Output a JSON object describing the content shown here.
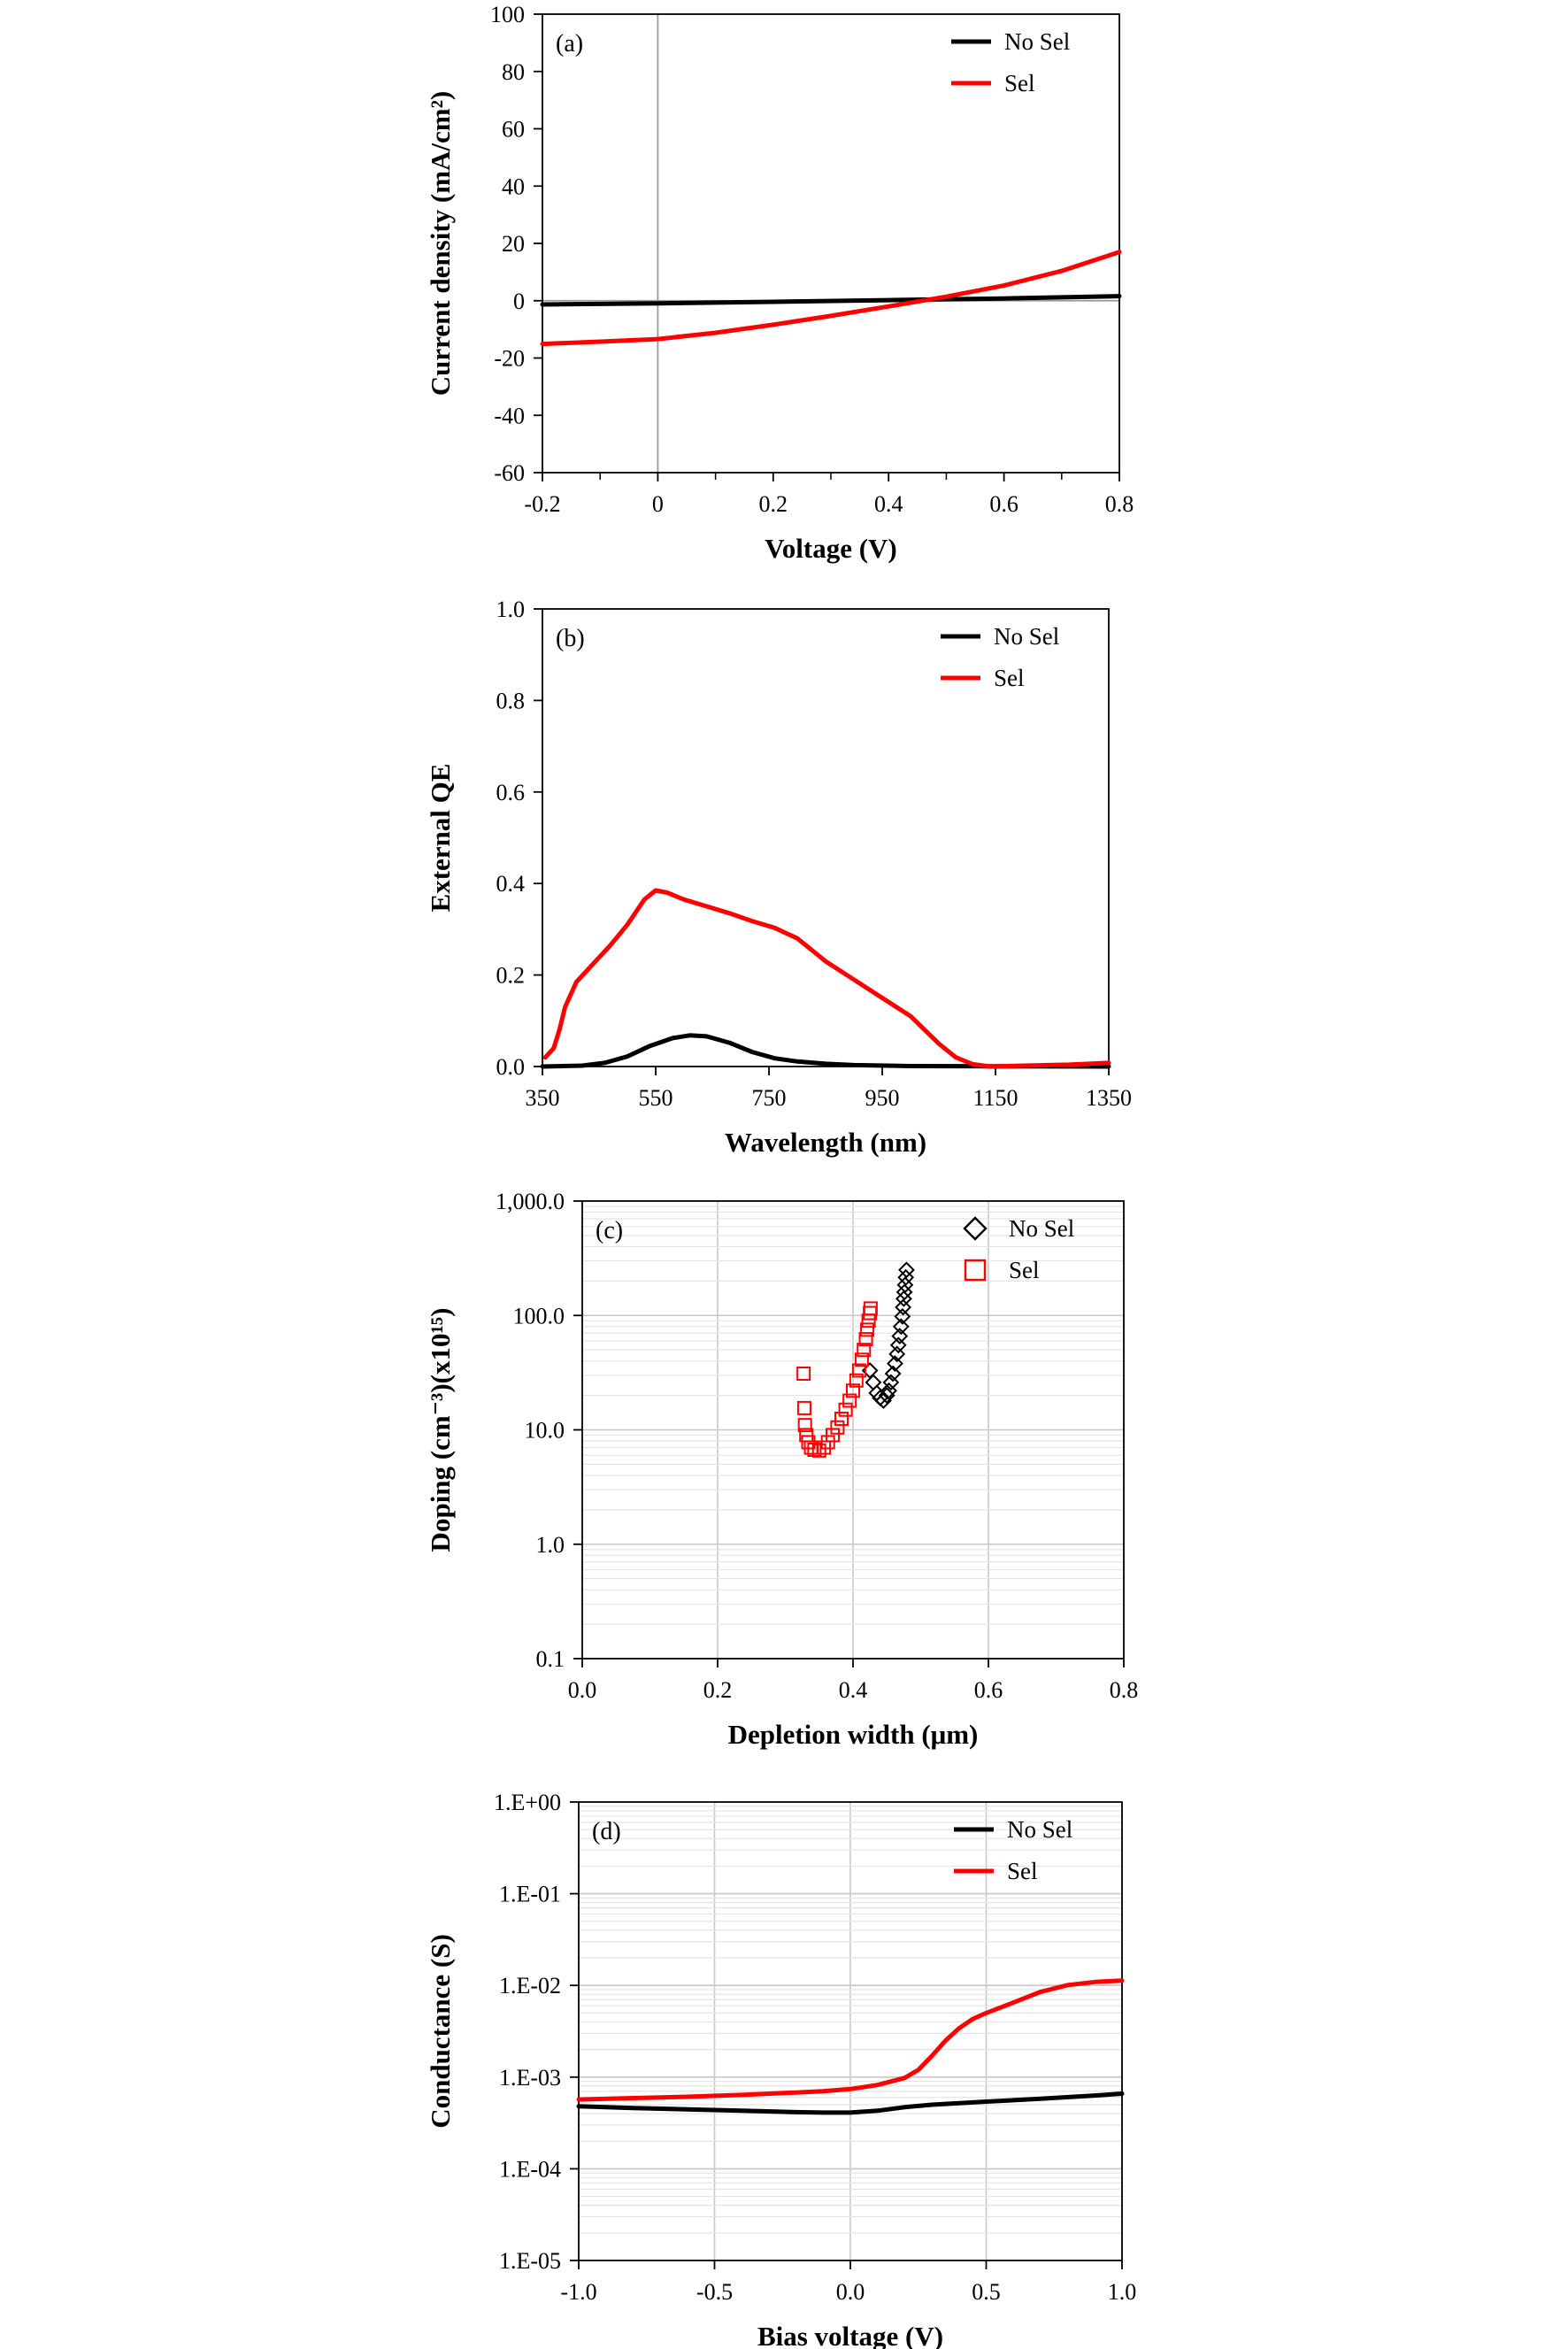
{
  "chart_data": [
    {
      "panel_label": "(a)",
      "type": "line",
      "xlabel": "Voltage (V)",
      "ylabel": "Current density (mA/cm²)",
      "xlim": [
        -0.2,
        0.8
      ],
      "ylim": [
        -60,
        100
      ],
      "xticks": [
        -0.2,
        0,
        0.2,
        0.4,
        0.6,
        0.8
      ],
      "xtick_labels": [
        "-0.2",
        "0",
        "0.2",
        "0.4",
        "0.6",
        "0.8"
      ],
      "yticks": [
        -60,
        -40,
        -20,
        0,
        20,
        40,
        60,
        80,
        100
      ],
      "ytick_labels": [
        "-60",
        "-40",
        "-20",
        "0",
        "20",
        "40",
        "60",
        "80",
        "100"
      ],
      "grid": false,
      "zero_lines": true,
      "legend_position": "top-right",
      "series": [
        {
          "name": "No Sel",
          "color": "#000000",
          "marker": "line",
          "x": [
            -0.2,
            0.0,
            0.2,
            0.4,
            0.6,
            0.8
          ],
          "y": [
            -1.3,
            -0.9,
            -0.4,
            0.2,
            0.8,
            1.6
          ]
        },
        {
          "name": "Sel",
          "color": "#ff0000",
          "marker": "line",
          "x": [
            -0.2,
            -0.1,
            0.0,
            0.1,
            0.2,
            0.3,
            0.4,
            0.45,
            0.5,
            0.6,
            0.7,
            0.8
          ],
          "y": [
            -15.1,
            -14.3,
            -13.4,
            -11.2,
            -8.4,
            -5.3,
            -2.0,
            -0.3,
            1.4,
            5.3,
            10.4,
            17.0
          ]
        }
      ]
    },
    {
      "panel_label": "(b)",
      "type": "line",
      "xlabel": "Wavelength (nm)",
      "ylabel": "External QE",
      "xlim": [
        350,
        1350
      ],
      "ylim": [
        0,
        1
      ],
      "xticks": [
        350,
        550,
        750,
        950,
        1150,
        1350
      ],
      "xtick_labels": [
        "350",
        "550",
        "750",
        "950",
        "1150",
        "1350"
      ],
      "yticks": [
        0,
        0.2,
        0.4,
        0.6,
        0.8,
        1.0
      ],
      "ytick_labels": [
        "0.0",
        "0.2",
        "0.4",
        "0.6",
        "0.8",
        "1.0"
      ],
      "grid": false,
      "legend_position": "top-right",
      "series": [
        {
          "name": "No Sel",
          "color": "#000000",
          "marker": "line",
          "x": [
            350,
            420,
            460,
            500,
            540,
            580,
            610,
            640,
            680,
            720,
            760,
            800,
            850,
            900,
            1000,
            1350
          ],
          "y": [
            0.0,
            0.002,
            0.008,
            0.022,
            0.045,
            0.062,
            0.068,
            0.066,
            0.052,
            0.032,
            0.018,
            0.011,
            0.006,
            0.003,
            0.001,
            0.0
          ]
        },
        {
          "name": "Sel",
          "color": "#ff0000",
          "marker": "line",
          "x": [
            355,
            370,
            380,
            390,
            410,
            440,
            470,
            500,
            530,
            550,
            570,
            600,
            640,
            680,
            720,
            760,
            800,
            850,
            900,
            950,
            1000,
            1050,
            1080,
            1110,
            1140,
            1200,
            1280,
            1350
          ],
          "y": [
            0.02,
            0.04,
            0.08,
            0.13,
            0.185,
            0.225,
            0.265,
            0.31,
            0.365,
            0.385,
            0.38,
            0.365,
            0.35,
            0.335,
            0.318,
            0.303,
            0.28,
            0.23,
            0.19,
            0.15,
            0.11,
            0.05,
            0.02,
            0.005,
            0.0,
            0.002,
            0.004,
            0.008
          ]
        }
      ]
    },
    {
      "panel_label": "(c)",
      "type": "scatter",
      "xlabel": "Depletion width (μm)",
      "ylabel": "Doping (cm⁻³)(x10¹⁵)",
      "xlim": [
        0,
        0.8
      ],
      "ylim": [
        0.1,
        1000
      ],
      "yscale": "log",
      "xticks": [
        0,
        0.2,
        0.4,
        0.6,
        0.8
      ],
      "xtick_labels": [
        "0.0",
        "0.2",
        "0.4",
        "0.6",
        "0.8"
      ],
      "yticks": [
        0.1,
        1,
        10,
        100,
        1000
      ],
      "ytick_labels": [
        "0.1",
        "1.0",
        "10.0",
        "100.0",
        "1,000.0"
      ],
      "grid": true,
      "legend_position": "top-right",
      "series": [
        {
          "name": "No Sel",
          "color": "#000000",
          "marker": "diamond",
          "x": [
            0.425,
            0.43,
            0.435,
            0.44,
            0.445,
            0.45,
            0.453,
            0.456,
            0.459,
            0.462,
            0.465,
            0.467,
            0.469,
            0.471,
            0.473,
            0.474,
            0.475,
            0.476,
            0.477,
            0.478,
            0.479
          ],
          "y": [
            33,
            26,
            21,
            19,
            18,
            20,
            22,
            26,
            31,
            38,
            46,
            55,
            66,
            80,
            98,
            118,
            140,
            160,
            185,
            215,
            250
          ]
        },
        {
          "name": "Sel",
          "color": "#ff0000",
          "marker": "square",
          "x": [
            0.327,
            0.328,
            0.329,
            0.331,
            0.334,
            0.338,
            0.343,
            0.35,
            0.357,
            0.363,
            0.37,
            0.377,
            0.383,
            0.389,
            0.395,
            0.4,
            0.405,
            0.409,
            0.413,
            0.416,
            0.419,
            0.421,
            0.423,
            0.425,
            0.426
          ],
          "y": [
            31,
            15.5,
            11,
            9,
            7.8,
            7.0,
            6.7,
            6.6,
            7.0,
            7.8,
            9.0,
            10.5,
            12.5,
            15,
            18,
            22,
            27,
            33,
            41,
            50,
            62,
            75,
            90,
            105,
            115
          ]
        }
      ]
    },
    {
      "panel_label": "(d)",
      "type": "line",
      "xlabel": "Bias voltage (V)",
      "ylabel": "Conductance (S)",
      "xlim": [
        -1,
        1
      ],
      "ylim": [
        1e-05,
        1
      ],
      "yscale": "log",
      "xticks": [
        -1,
        -0.5,
        0,
        0.5,
        1
      ],
      "xtick_labels": [
        "-1.0",
        "-0.5",
        "0.0",
        "0.5",
        "1.0"
      ],
      "yticks": [
        1e-05,
        0.0001,
        0.001,
        0.01,
        0.1,
        1
      ],
      "ytick_labels": [
        "1.E-05",
        "1.E-04",
        "1.E-03",
        "1.E-02",
        "1.E-01",
        "1.E+00"
      ],
      "grid": true,
      "legend_position": "top-right",
      "series": [
        {
          "name": "No Sel",
          "color": "#000000",
          "marker": "line",
          "x": [
            -1.0,
            -0.8,
            -0.6,
            -0.4,
            -0.2,
            -0.1,
            0.0,
            0.1,
            0.2,
            0.3,
            0.5,
            0.7,
            0.9,
            1.0
          ],
          "y": [
            0.00048,
            0.00046,
            0.000445,
            0.00043,
            0.000415,
            0.00041,
            0.00041,
            0.00043,
            0.00047,
            0.0005,
            0.00054,
            0.00058,
            0.00063,
            0.00066
          ]
        },
        {
          "name": "Sel",
          "color": "#ff0000",
          "marker": "line",
          "x": [
            -1.0,
            -0.8,
            -0.6,
            -0.4,
            -0.2,
            -0.1,
            0.0,
            0.1,
            0.2,
            0.25,
            0.3,
            0.35,
            0.4,
            0.45,
            0.5,
            0.6,
            0.7,
            0.8,
            0.9,
            1.0
          ],
          "y": [
            0.00057,
            0.00059,
            0.00061,
            0.00064,
            0.00068,
            0.0007,
            0.00074,
            0.00082,
            0.00098,
            0.0012,
            0.0017,
            0.0025,
            0.0034,
            0.0043,
            0.005,
            0.0065,
            0.0085,
            0.0101,
            0.0109,
            0.0113
          ]
        }
      ]
    }
  ]
}
